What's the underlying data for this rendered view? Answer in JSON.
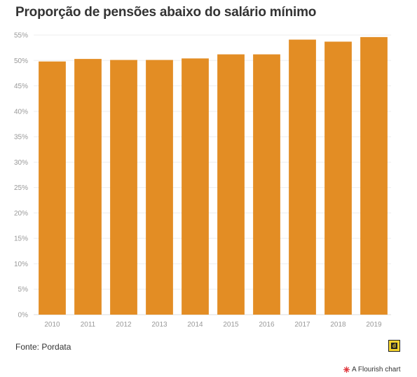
{
  "chart_data": {
    "type": "bar",
    "title": "Proporção de pensões abaixo do salário mínimo",
    "categories": [
      "2010",
      "2011",
      "2012",
      "2013",
      "2014",
      "2015",
      "2016",
      "2017",
      "2018",
      "2019"
    ],
    "values": [
      49.8,
      50.3,
      50.1,
      50.1,
      50.4,
      51.2,
      51.2,
      54.1,
      53.7,
      54.6
    ],
    "ylim": [
      0,
      55
    ],
    "yticks": [
      0,
      5,
      10,
      15,
      20,
      25,
      30,
      35,
      40,
      45,
      50,
      55
    ],
    "ytick_suffix": "%",
    "bar_color": "#e38d24",
    "grid": true,
    "xlabel": "",
    "ylabel": ""
  },
  "footer": {
    "source": "Fonte: Pordata",
    "credit": "A Flourish chart",
    "logo_icon": "pordata-logo-icon",
    "credit_icon": "flourish-logo-icon"
  }
}
